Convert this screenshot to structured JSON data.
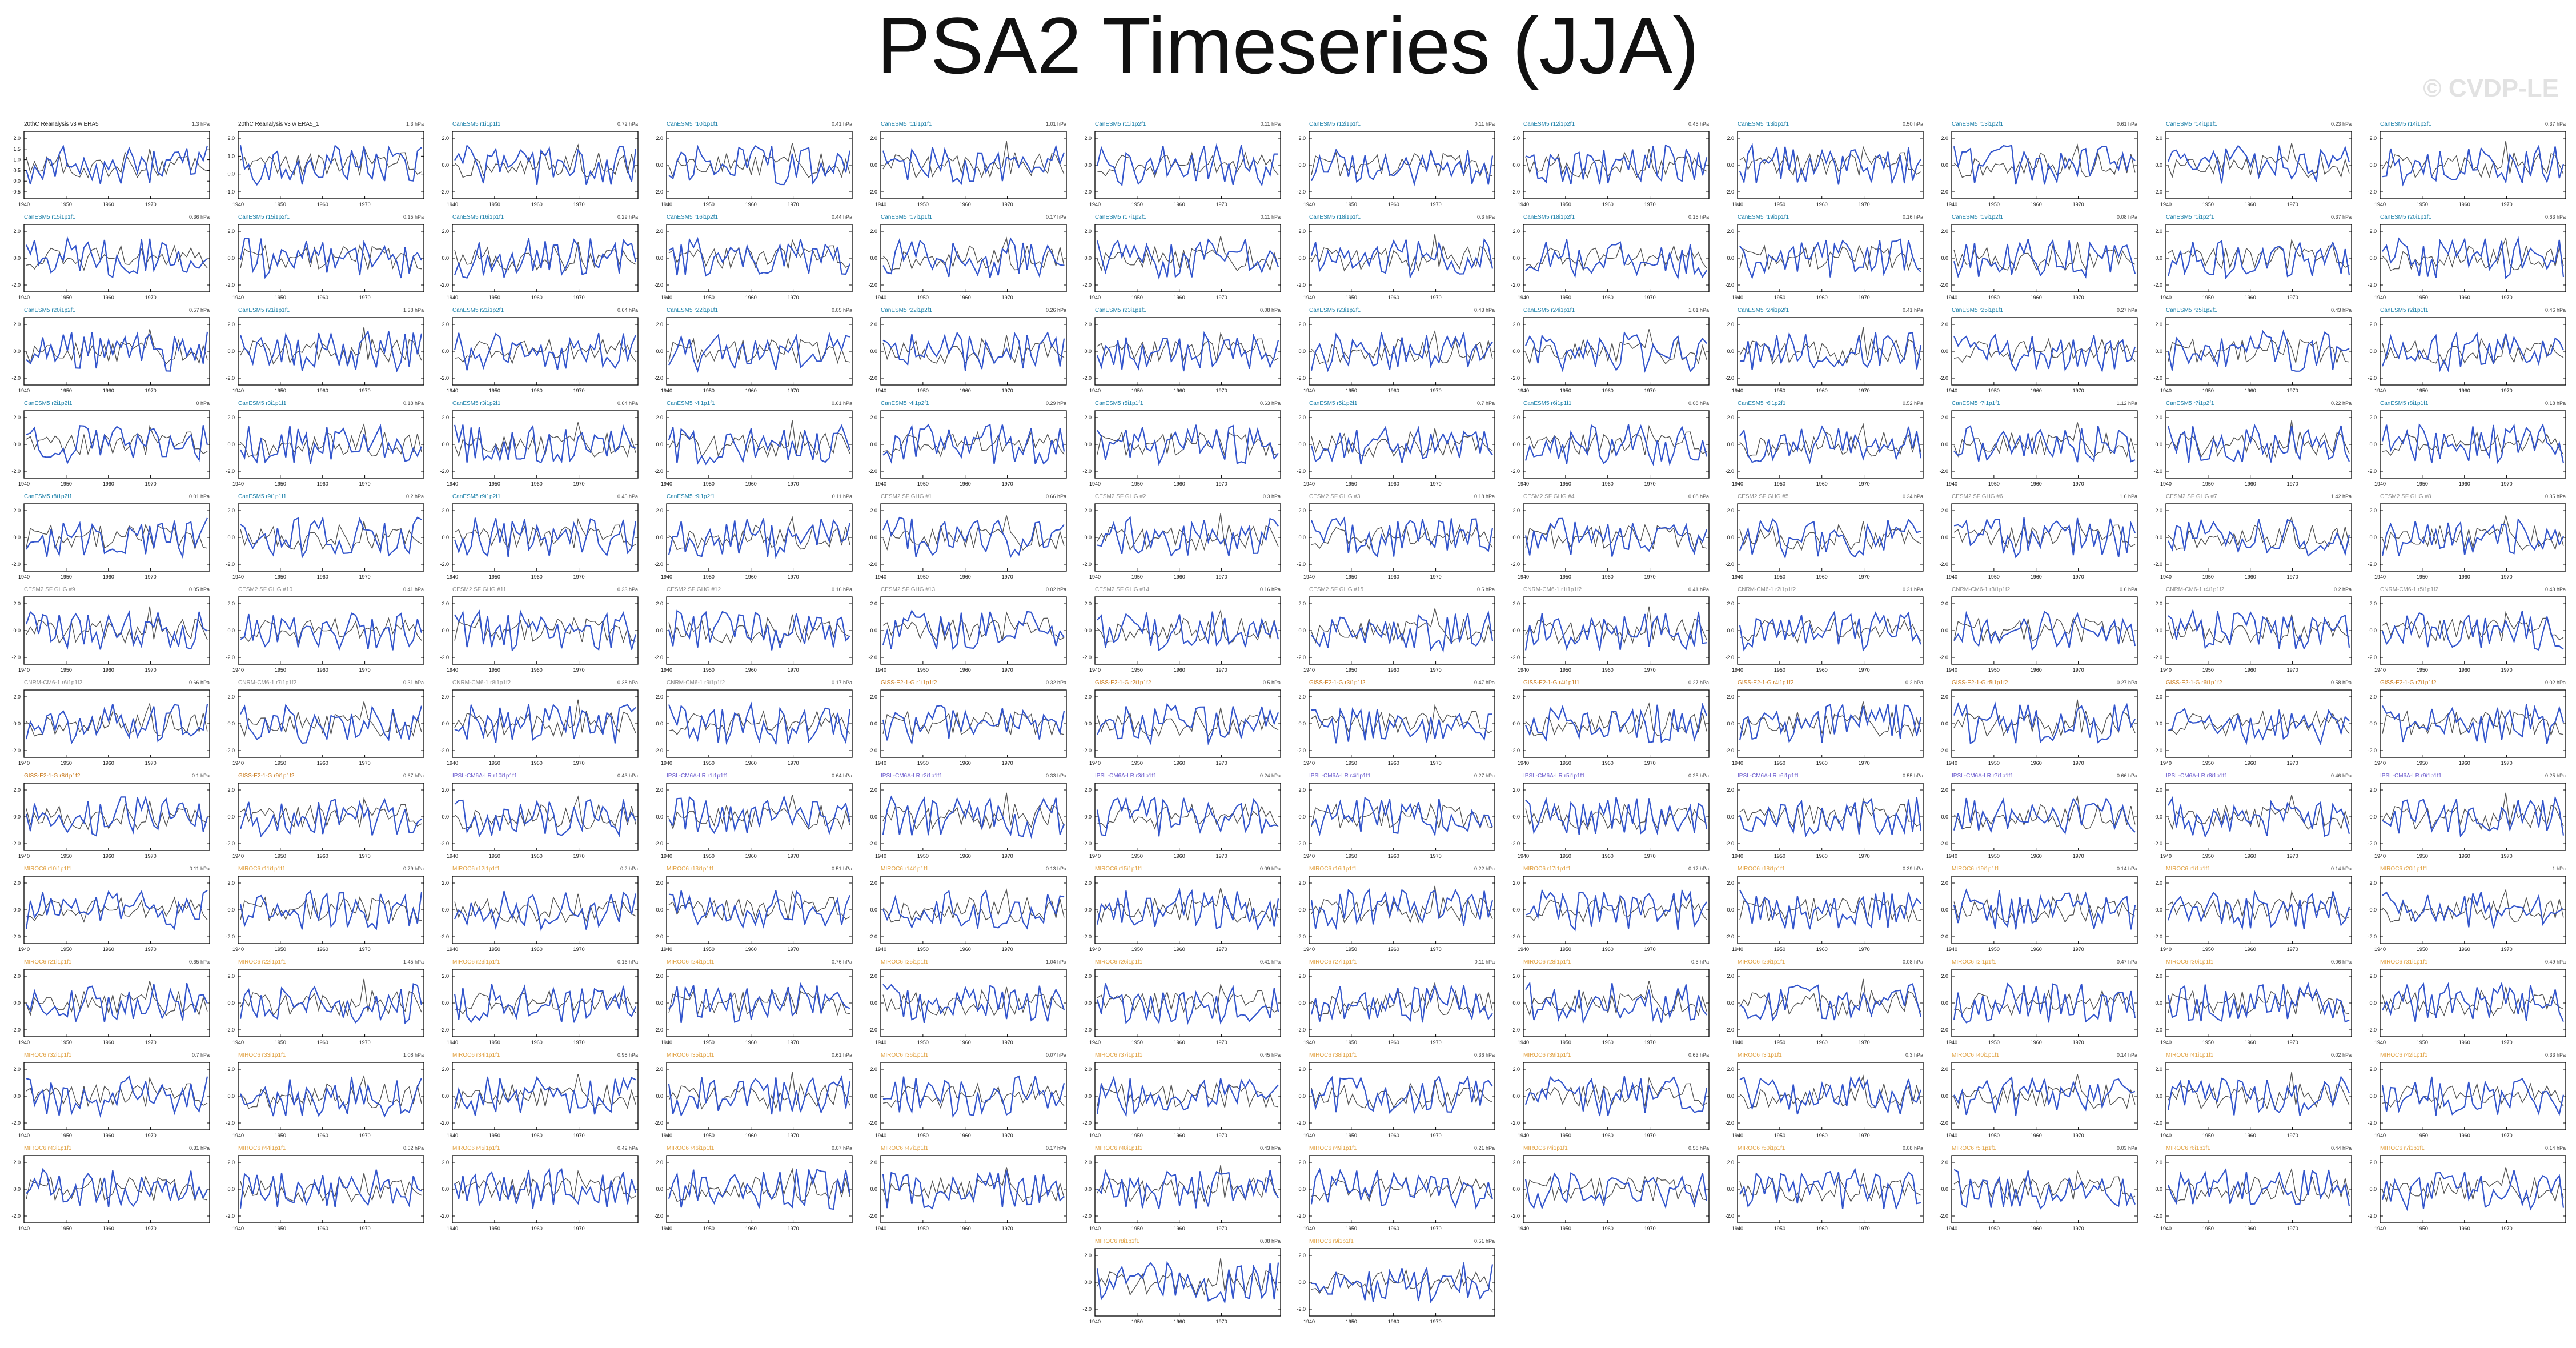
{
  "figure": {
    "title": "PSA2 Timeseries (JJA)",
    "watermark": "© CVDP-LE"
  },
  "colors": {
    "background": "#ffffff",
    "title": "#111111",
    "observed_line": "#3355cc",
    "reference_line": "#555555",
    "CanESM5_label": "#1a7fa8",
    "CESM2_label": "#8a8a8a",
    "CNRM_label": "#8a8a8a",
    "GISS_label": "#c87a1e",
    "IPSL_label": "#6a5acd",
    "MIROC6_label": "#e0a040",
    "obs_label": "#222222"
  },
  "chart_data": {
    "type": "line",
    "x_range": [
      1940,
      1984
    ],
    "x_ticks": [
      "1940",
      "1950",
      "1960",
      "1970"
    ],
    "y_ticks_default": [
      "2.0",
      "0.0",
      "-2.0"
    ],
    "grid": false,
    "panels": [
      {
        "title": "20thC Reanalysis v3 w ERA5",
        "stat": "1.3 hPa",
        "color": "obs",
        "y_ticks": [
          "2.0",
          "1.5",
          "1.0",
          "0.5",
          "0.0",
          "-0.5"
        ]
      },
      {
        "title": "20thC Reanalysis v3 w ERA5_1",
        "stat": "1.3 hPa",
        "color": "obs",
        "y_ticks": [
          "2.0",
          "1.0",
          "0.0",
          "-1.0"
        ]
      },
      {
        "title": "CanESM5 r1i1p1f1",
        "stat": "0.72 hPa",
        "color": "CanESM5"
      },
      {
        "title": "CanESM5 r10i1p1f1",
        "stat": "0.41 hPa",
        "color": "CanESM5"
      },
      {
        "title": "CanESM5 r11i1p1f1",
        "stat": "1.01 hPa",
        "color": "CanESM5"
      },
      {
        "title": "CanESM5 r11i1p2f1",
        "stat": "0.11 hPa",
        "color": "CanESM5"
      },
      {
        "title": "CanESM5 r12i1p1f1",
        "stat": "0.11 hPa",
        "color": "CanESM5"
      },
      {
        "title": "CanESM5 r12i1p2f1",
        "stat": "0.45 hPa",
        "color": "CanESM5"
      },
      {
        "title": "CanESM5 r13i1p1f1",
        "stat": "0.50 hPa",
        "color": "CanESM5"
      },
      {
        "title": "CanESM5 r13i1p2f1",
        "stat": "0.61 hPa",
        "color": "CanESM5"
      },
      {
        "title": "CanESM5 r14i1p1f1",
        "stat": "0.23 hPa",
        "color": "CanESM5"
      },
      {
        "title": "CanESM5 r14i1p2f1",
        "stat": "0.37 hPa",
        "color": "CanESM5"
      },
      {
        "title": "CanESM5 r15i1p1f1",
        "stat": "0.36 hPa",
        "color": "CanESM5"
      },
      {
        "title": "CanESM5 r15i1p2f1",
        "stat": "0.15 hPa",
        "color": "CanESM5"
      },
      {
        "title": "CanESM5 r16i1p1f1",
        "stat": "0.29 hPa",
        "color": "CanESM5"
      },
      {
        "title": "CanESM5 r16i1p2f1",
        "stat": "0.44 hPa",
        "color": "CanESM5"
      },
      {
        "title": "CanESM5 r17i1p1f1",
        "stat": "0.17 hPa",
        "color": "CanESM5"
      },
      {
        "title": "CanESM5 r17i1p2f1",
        "stat": "0.11 hPa",
        "color": "CanESM5"
      },
      {
        "title": "CanESM5 r18i1p1f1",
        "stat": "0.3 hPa",
        "color": "CanESM5"
      },
      {
        "title": "CanESM5 r18i1p2f1",
        "stat": "0.15 hPa",
        "color": "CanESM5"
      },
      {
        "title": "CanESM5 r19i1p1f1",
        "stat": "0.16 hPa",
        "color": "CanESM5"
      },
      {
        "title": "CanESM5 r19i1p2f1",
        "stat": "0.08 hPa",
        "color": "CanESM5"
      },
      {
        "title": "CanESM5 r1i1p2f1",
        "stat": "0.37 hPa",
        "color": "CanESM5"
      },
      {
        "title": "CanESM5 r20i1p1f1",
        "stat": "0.63 hPa",
        "color": "CanESM5"
      },
      {
        "title": "CanESM5 r20i1p2f1",
        "stat": "0.57 hPa",
        "color": "CanESM5"
      },
      {
        "title": "CanESM5 r21i1p1f1",
        "stat": "1.38 hPa",
        "color": "CanESM5"
      },
      {
        "title": "CanESM5 r21i1p2f1",
        "stat": "0.64 hPa",
        "color": "CanESM5"
      },
      {
        "title": "CanESM5 r22i1p1f1",
        "stat": "0.05 hPa",
        "color": "CanESM5"
      },
      {
        "title": "CanESM5 r22i1p2f1",
        "stat": "0.26 hPa",
        "color": "CanESM5"
      },
      {
        "title": "CanESM5 r23i1p1f1",
        "stat": "0.08 hPa",
        "color": "CanESM5"
      },
      {
        "title": "CanESM5 r23i1p2f1",
        "stat": "0.43 hPa",
        "color": "CanESM5"
      },
      {
        "title": "CanESM5 r24i1p1f1",
        "stat": "1.01 hPa",
        "color": "CanESM5"
      },
      {
        "title": "CanESM5 r24i1p2f1",
        "stat": "0.41 hPa",
        "color": "CanESM5"
      },
      {
        "title": "CanESM5 r25i1p1f1",
        "stat": "0.27 hPa",
        "color": "CanESM5"
      },
      {
        "title": "CanESM5 r25i1p2f1",
        "stat": "0.43 hPa",
        "color": "CanESM5"
      },
      {
        "title": "CanESM5 r2i1p1f1",
        "stat": "0.46 hPa",
        "color": "CanESM5"
      },
      {
        "title": "CanESM5 r2i1p2f1",
        "stat": "0 hPa",
        "color": "CanESM5"
      },
      {
        "title": "CanESM5 r3i1p1f1",
        "stat": "0.18 hPa",
        "color": "CanESM5"
      },
      {
        "title": "CanESM5 r3i1p2f1",
        "stat": "0.64 hPa",
        "color": "CanESM5"
      },
      {
        "title": "CanESM5 r4i1p1f1",
        "stat": "0.61 hPa",
        "color": "CanESM5"
      },
      {
        "title": "CanESM5 r4i1p2f1",
        "stat": "0.29 hPa",
        "color": "CanESM5"
      },
      {
        "title": "CanESM5 r5i1p1f1",
        "stat": "0.63 hPa",
        "color": "CanESM5"
      },
      {
        "title": "CanESM5 r5i1p2f1",
        "stat": "0.7 hPa",
        "color": "CanESM5"
      },
      {
        "title": "CanESM5 r6i1p1f1",
        "stat": "0.08 hPa",
        "color": "CanESM5"
      },
      {
        "title": "CanESM5 r6i1p2f1",
        "stat": "0.52 hPa",
        "color": "CanESM5"
      },
      {
        "title": "CanESM5 r7i1p1f1",
        "stat": "1.12 hPa",
        "color": "CanESM5"
      },
      {
        "title": "CanESM5 r7i1p2f1",
        "stat": "0.22 hPa",
        "color": "CanESM5"
      },
      {
        "title": "CanESM5 r8i1p1f1",
        "stat": "0.18 hPa",
        "color": "CanESM5"
      },
      {
        "title": "CanESM5 r8i1p2f1",
        "stat": "0.01 hPa",
        "color": "CanESM5"
      },
      {
        "title": "CanESM5 r9i1p1f1",
        "stat": "0.2 hPa",
        "color": "CanESM5"
      },
      {
        "title": "CanESM5 r9i1p2f1",
        "stat": "0.45 hPa",
        "color": "CanESM5"
      },
      {
        "title": "CanESM5 r9i1p2f1",
        "stat": "0.11 hPa",
        "color": "CanESM5"
      },
      {
        "title": "CESM2 SF GHG #1",
        "stat": "0.66 hPa",
        "color": "CESM2"
      },
      {
        "title": "CESM2 SF GHG #2",
        "stat": "0.3 hPa",
        "color": "CESM2"
      },
      {
        "title": "CESM2 SF GHG #3",
        "stat": "0.18 hPa",
        "color": "CESM2"
      },
      {
        "title": "CESM2 SF GHG #4",
        "stat": "0.08 hPa",
        "color": "CESM2"
      },
      {
        "title": "CESM2 SF GHG #5",
        "stat": "0.34 hPa",
        "color": "CESM2"
      },
      {
        "title": "CESM2 SF GHG #6",
        "stat": "1.6 hPa",
        "color": "CESM2"
      },
      {
        "title": "CESM2 SF GHG #7",
        "stat": "1.42 hPa",
        "color": "CESM2"
      },
      {
        "title": "CESM2 SF GHG #8",
        "stat": "0.35 hPa",
        "color": "CESM2"
      },
      {
        "title": "CESM2 SF GHG #9",
        "stat": "0.05 hPa",
        "color": "CESM2"
      },
      {
        "title": "CESM2 SF GHG #10",
        "stat": "0.41 hPa",
        "color": "CESM2"
      },
      {
        "title": "CESM2 SF GHG #11",
        "stat": "0.33 hPa",
        "color": "CESM2"
      },
      {
        "title": "CESM2 SF GHG #12",
        "stat": "0.16 hPa",
        "color": "CESM2"
      },
      {
        "title": "CESM2 SF GHG #13",
        "stat": "0.02 hPa",
        "color": "CESM2"
      },
      {
        "title": "CESM2 SF GHG #14",
        "stat": "0.16 hPa",
        "color": "CESM2"
      },
      {
        "title": "CESM2 SF GHG #15",
        "stat": "0.5 hPa",
        "color": "CESM2"
      },
      {
        "title": "CNRM-CM6-1 r1i1p1f2",
        "stat": "0.41 hPa",
        "color": "CNRM"
      },
      {
        "title": "CNRM-CM6-1 r2i1p1f2",
        "stat": "0.31 hPa",
        "color": "CNRM"
      },
      {
        "title": "CNRM-CM6-1 r3i1p1f2",
        "stat": "0.6 hPa",
        "color": "CNRM"
      },
      {
        "title": "CNRM-CM6-1 r4i1p1f2",
        "stat": "0.2 hPa",
        "color": "CNRM"
      },
      {
        "title": "CNRM-CM6-1 r5i1p1f2",
        "stat": "0.43 hPa",
        "color": "CNRM"
      },
      {
        "title": "CNRM-CM6-1 r6i1p1f2",
        "stat": "0.66 hPa",
        "color": "CNRM"
      },
      {
        "title": "CNRM-CM6-1 r7i1p1f2",
        "stat": "0.31 hPa",
        "color": "CNRM"
      },
      {
        "title": "CNRM-CM6-1 r8i1p1f2",
        "stat": "0.38 hPa",
        "color": "CNRM"
      },
      {
        "title": "CNRM-CM6-1 r9i1p1f2",
        "stat": "0.17 hPa",
        "color": "CNRM"
      },
      {
        "title": "GISS-E2-1-G r1i1p1f2",
        "stat": "0.32 hPa",
        "color": "GISS"
      },
      {
        "title": "GISS-E2-1-G r2i1p1f2",
        "stat": "0.5 hPa",
        "color": "GISS"
      },
      {
        "title": "GISS-E2-1-G r3i1p1f2",
        "stat": "0.47 hPa",
        "color": "GISS"
      },
      {
        "title": "GISS-E2-1-G r4i1p1f1",
        "stat": "0.27 hPa",
        "color": "GISS"
      },
      {
        "title": "GISS-E2-1-G r4i1p1f2",
        "stat": "0.2 hPa",
        "color": "GISS"
      },
      {
        "title": "GISS-E2-1-G r5i1p1f2",
        "stat": "0.27 hPa",
        "color": "GISS"
      },
      {
        "title": "GISS-E2-1-G r6i1p1f2",
        "stat": "0.58 hPa",
        "color": "GISS"
      },
      {
        "title": "GISS-E2-1-G r7i1p1f2",
        "stat": "0.02 hPa",
        "color": "GISS"
      },
      {
        "title": "GISS-E2-1-G r8i1p1f2",
        "stat": "0.1 hPa",
        "color": "GISS"
      },
      {
        "title": "GISS-E2-1-G r9i1p1f2",
        "stat": "0.67 hPa",
        "color": "GISS"
      },
      {
        "title": "IPSL-CM6A-LR r10i1p1f1",
        "stat": "0.43 hPa",
        "color": "IPSL"
      },
      {
        "title": "IPSL-CM6A-LR r1i1p1f1",
        "stat": "0.64 hPa",
        "color": "IPSL"
      },
      {
        "title": "IPSL-CM6A-LR r2i1p1f1",
        "stat": "0.33 hPa",
        "color": "IPSL"
      },
      {
        "title": "IPSL-CM6A-LR r3i1p1f1",
        "stat": "0.24 hPa",
        "color": "IPSL"
      },
      {
        "title": "IPSL-CM6A-LR r4i1p1f1",
        "stat": "0.27 hPa",
        "color": "IPSL"
      },
      {
        "title": "IPSL-CM6A-LR r5i1p1f1",
        "stat": "0.25 hPa",
        "color": "IPSL"
      },
      {
        "title": "IPSL-CM6A-LR r6i1p1f1",
        "stat": "0.55 hPa",
        "color": "IPSL"
      },
      {
        "title": "IPSL-CM6A-LR r7i1p1f1",
        "stat": "0.66 hPa",
        "color": "IPSL"
      },
      {
        "title": "IPSL-CM6A-LR r8i1p1f1",
        "stat": "0.46 hPa",
        "color": "IPSL"
      },
      {
        "title": "IPSL-CM6A-LR r9i1p1f1",
        "stat": "0.25 hPa",
        "color": "IPSL"
      },
      {
        "title": "MIROC6 r10i1p1f1",
        "stat": "0.11 hPa",
        "color": "MIROC6"
      },
      {
        "title": "MIROC6 r11i1p1f1",
        "stat": "0.79 hPa",
        "color": "MIROC6"
      },
      {
        "title": "MIROC6 r12i1p1f1",
        "stat": "0.2 hPa",
        "color": "MIROC6"
      },
      {
        "title": "MIROC6 r13i1p1f1",
        "stat": "0.51 hPa",
        "color": "MIROC6"
      },
      {
        "title": "MIROC6 r14i1p1f1",
        "stat": "0.13 hPa",
        "color": "MIROC6"
      },
      {
        "title": "MIROC6 r15i1p1f1",
        "stat": "0.09 hPa",
        "color": "MIROC6"
      },
      {
        "title": "MIROC6 r16i1p1f1",
        "stat": "0.22 hPa",
        "color": "MIROC6"
      },
      {
        "title": "MIROC6 r17i1p1f1",
        "stat": "0.17 hPa",
        "color": "MIROC6"
      },
      {
        "title": "MIROC6 r18i1p1f1",
        "stat": "0.39 hPa",
        "color": "MIROC6"
      },
      {
        "title": "MIROC6 r19i1p1f1",
        "stat": "0.14 hPa",
        "color": "MIROC6"
      },
      {
        "title": "MIROC6 r1i1p1f1",
        "stat": "0.14 hPa",
        "color": "MIROC6"
      },
      {
        "title": "MIROC6 r20i1p1f1",
        "stat": "1 hPa",
        "color": "MIROC6"
      },
      {
        "title": "MIROC6 r21i1p1f1",
        "stat": "0.65 hPa",
        "color": "MIROC6"
      },
      {
        "title": "MIROC6 r22i1p1f1",
        "stat": "1.45 hPa",
        "color": "MIROC6"
      },
      {
        "title": "MIROC6 r23i1p1f1",
        "stat": "0.16 hPa",
        "color": "MIROC6"
      },
      {
        "title": "MIROC6 r24i1p1f1",
        "stat": "0.76 hPa",
        "color": "MIROC6"
      },
      {
        "title": "MIROC6 r25i1p1f1",
        "stat": "1.04 hPa",
        "color": "MIROC6"
      },
      {
        "title": "MIROC6 r26i1p1f1",
        "stat": "0.41 hPa",
        "color": "MIROC6"
      },
      {
        "title": "MIROC6 r27i1p1f1",
        "stat": "0.11 hPa",
        "color": "MIROC6"
      },
      {
        "title": "MIROC6 r28i1p1f1",
        "stat": "0.5 hPa",
        "color": "MIROC6"
      },
      {
        "title": "MIROC6 r29i1p1f1",
        "stat": "0.08 hPa",
        "color": "MIROC6"
      },
      {
        "title": "MIROC6 r2i1p1f1",
        "stat": "0.47 hPa",
        "color": "MIROC6"
      },
      {
        "title": "MIROC6 r30i1p1f1",
        "stat": "0.06 hPa",
        "color": "MIROC6"
      },
      {
        "title": "MIROC6 r31i1p1f1",
        "stat": "0.49 hPa",
        "color": "MIROC6"
      },
      {
        "title": "MIROC6 r32i1p1f1",
        "stat": "0.7 hPa",
        "color": "MIROC6"
      },
      {
        "title": "MIROC6 r33i1p1f1",
        "stat": "1.08 hPa",
        "color": "MIROC6"
      },
      {
        "title": "MIROC6 r34i1p1f1",
        "stat": "0.98 hPa",
        "color": "MIROC6"
      },
      {
        "title": "MIROC6 r35i1p1f1",
        "stat": "0.61 hPa",
        "color": "MIROC6"
      },
      {
        "title": "MIROC6 r36i1p1f1",
        "stat": "0.07 hPa",
        "color": "MIROC6"
      },
      {
        "title": "MIROC6 r37i1p1f1",
        "stat": "0.45 hPa",
        "color": "MIROC6"
      },
      {
        "title": "MIROC6 r38i1p1f1",
        "stat": "0.36 hPa",
        "color": "MIROC6"
      },
      {
        "title": "MIROC6 r39i1p1f1",
        "stat": "0.63 hPa",
        "color": "MIROC6"
      },
      {
        "title": "MIROC6 r3i1p1f1",
        "stat": "0.3 hPa",
        "color": "MIROC6"
      },
      {
        "title": "MIROC6 r40i1p1f1",
        "stat": "0.14 hPa",
        "color": "MIROC6"
      },
      {
        "title": "MIROC6 r41i1p1f1",
        "stat": "0.02 hPa",
        "color": "MIROC6"
      },
      {
        "title": "MIROC6 r42i1p1f1",
        "stat": "0.33 hPa",
        "color": "MIROC6"
      },
      {
        "title": "MIROC6 r43i1p1f1",
        "stat": "0.31 hPa",
        "color": "MIROC6"
      },
      {
        "title": "MIROC6 r44i1p1f1",
        "stat": "0.52 hPa",
        "color": "MIROC6"
      },
      {
        "title": "MIROC6 r45i1p1f1",
        "stat": "0.42 hPa",
        "color": "MIROC6"
      },
      {
        "title": "MIROC6 r46i1p1f1",
        "stat": "0.07 hPa",
        "color": "MIROC6"
      },
      {
        "title": "MIROC6 r47i1p1f1",
        "stat": "0.17 hPa",
        "color": "MIROC6"
      },
      {
        "title": "MIROC6 r48i1p1f1",
        "stat": "0.43 hPa",
        "color": "MIROC6"
      },
      {
        "title": "MIROC6 r49i1p1f1",
        "stat": "0.21 hPa",
        "color": "MIROC6"
      },
      {
        "title": "MIROC6 r4i1p1f1",
        "stat": "0.58 hPa",
        "color": "MIROC6"
      },
      {
        "title": "MIROC6 r50i1p1f1",
        "stat": "0.08 hPa",
        "color": "MIROC6"
      },
      {
        "title": "MIROC6 r5i1p1f1",
        "stat": "0.03 hPa",
        "color": "MIROC6"
      },
      {
        "title": "MIROC6 r6i1p1f1",
        "stat": "0.44 hPa",
        "color": "MIROC6"
      },
      {
        "title": "MIROC6 r7i1p1f1",
        "stat": "0.14 hPa",
        "color": "MIROC6"
      },
      {
        "title": "MIROC6 r8i1p1f1",
        "stat": "0.08 hPa",
        "color": "MIROC6"
      },
      {
        "title": "MIROC6 r9i1p1f1",
        "stat": "0.51 hPa",
        "color": "MIROC6"
      }
    ]
  }
}
